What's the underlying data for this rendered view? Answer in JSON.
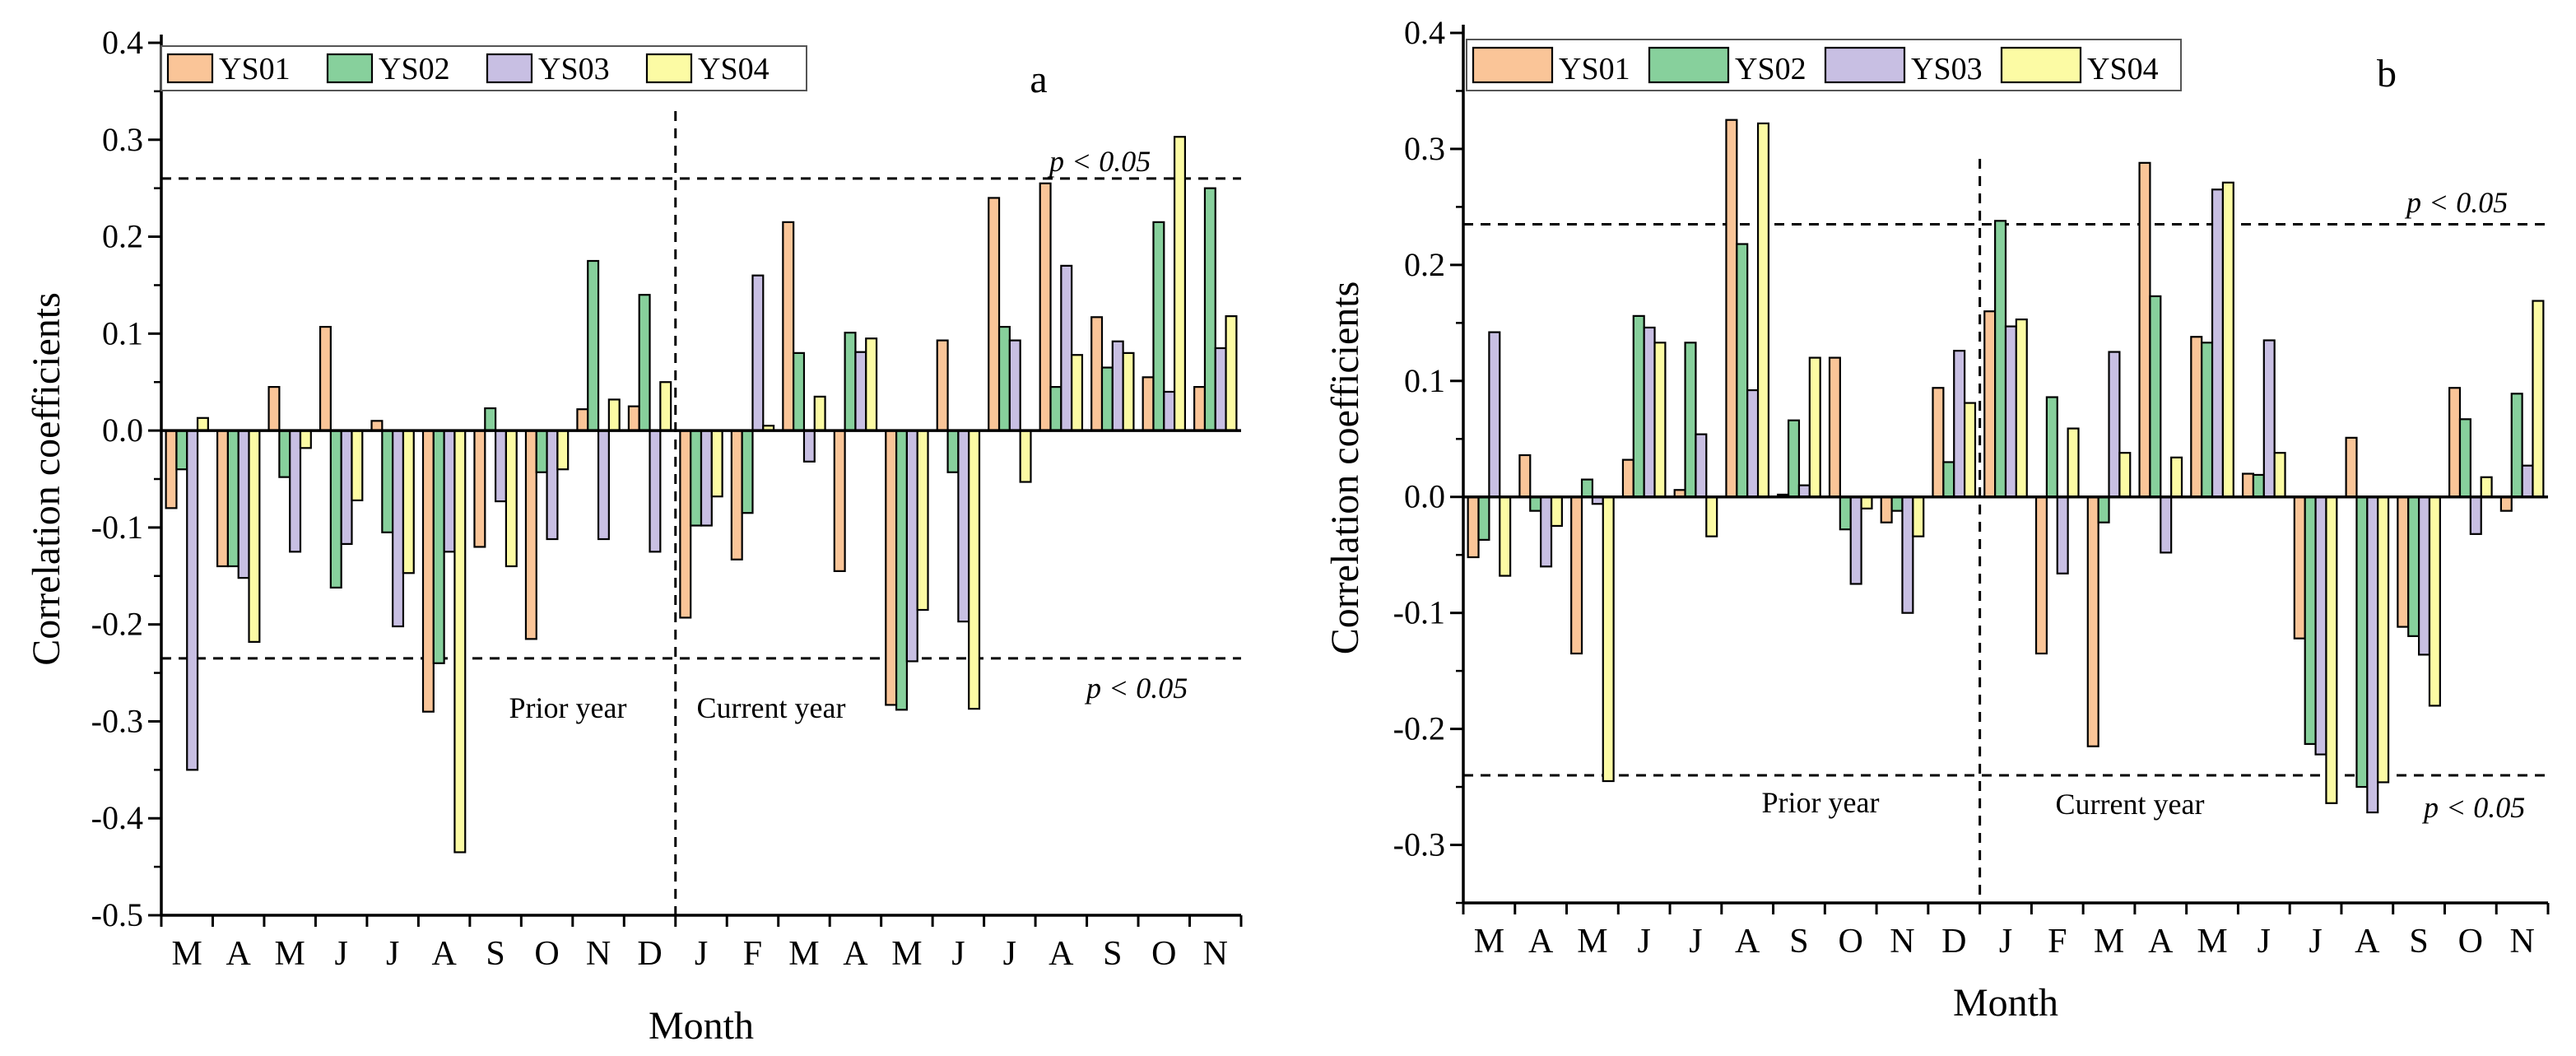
{
  "colors": {
    "YS01": "#FAC598",
    "YS02": "#87D09C",
    "YS03": "#C8BFE3",
    "YS04": "#FCFBA4",
    "axis": "#000000"
  },
  "chart_data": [
    {
      "type": "bar",
      "panel_label": "a",
      "ylabel": "Correlation coefficients",
      "xlabel": "Month",
      "ylim": [
        -0.5,
        0.4
      ],
      "ytick_labels": [
        "-0.5",
        "-0.4",
        "-0.3",
        "-0.2",
        "-0.1",
        "0.0",
        "0.1",
        "0.2",
        "0.3",
        "0.4"
      ],
      "categories": [
        "M",
        "A",
        "M",
        "J",
        "J",
        "A",
        "S",
        "O",
        "N",
        "D",
        "J",
        "F",
        "M",
        "A",
        "M",
        "J",
        "J",
        "A",
        "S",
        "O",
        "N"
      ],
      "divider_after_index": 9,
      "prior_label": "Prior year",
      "current_label": "Current year",
      "thresholds": [
        {
          "value": 0.26,
          "label": "p < 0.05"
        },
        {
          "value": -0.235,
          "label": "p < 0.05"
        }
      ],
      "series": [
        {
          "name": "YS01",
          "values": [
            -0.08,
            -0.14,
            0.045,
            0.107,
            0.01,
            -0.29,
            -0.12,
            -0.215,
            0.022,
            0.025,
            -0.193,
            -0.133,
            0.215,
            -0.145,
            -0.283,
            0.093,
            0.24,
            0.255,
            0.117,
            0.055,
            0.045
          ]
        },
        {
          "name": "YS02",
          "values": [
            -0.04,
            -0.14,
            -0.048,
            -0.162,
            -0.105,
            -0.24,
            0.023,
            -0.043,
            0.175,
            0.14,
            -0.098,
            -0.085,
            0.08,
            0.101,
            -0.288,
            -0.043,
            0.107,
            0.045,
            0.065,
            0.215,
            0.25
          ]
        },
        {
          "name": "YS03",
          "values": [
            -0.35,
            -0.152,
            -0.125,
            -0.117,
            -0.202,
            -0.125,
            -0.073,
            -0.112,
            -0.112,
            -0.125,
            -0.098,
            0.16,
            -0.032,
            0.081,
            -0.238,
            -0.197,
            0.093,
            0.17,
            0.092,
            0.04,
            0.085
          ]
        },
        {
          "name": "YS04",
          "values": [
            0.013,
            -0.218,
            -0.018,
            -0.072,
            -0.147,
            -0.435,
            -0.14,
            -0.04,
            0.032,
            0.05,
            -0.068,
            0.005,
            0.035,
            0.095,
            -0.185,
            -0.287,
            -0.053,
            0.078,
            0.08,
            0.303,
            0.118
          ]
        }
      ]
    },
    {
      "type": "bar",
      "panel_label": "b",
      "ylabel": "Correlation coefficients",
      "xlabel": "Month",
      "ylim": [
        -0.35,
        0.4
      ],
      "ytick_labels": [
        "-0.3",
        "-0.2",
        "-0.1",
        "0.0",
        "0.1",
        "0.2",
        "0.3",
        "0.4"
      ],
      "categories": [
        "M",
        "A",
        "M",
        "J",
        "J",
        "A",
        "S",
        "O",
        "N",
        "D",
        "J",
        "F",
        "M",
        "A",
        "M",
        "J",
        "J",
        "A",
        "S",
        "O",
        "N"
      ],
      "divider_after_index": 9,
      "prior_label": "Prior year",
      "current_label": "Current year",
      "thresholds": [
        {
          "value": 0.235,
          "label": "p < 0.05"
        },
        {
          "value": -0.24,
          "label": "p < 0.05"
        }
      ],
      "series": [
        {
          "name": "YS01",
          "values": [
            -0.052,
            0.036,
            -0.135,
            0.032,
            0.006,
            0.325,
            0.002,
            0.12,
            -0.022,
            0.094,
            0.16,
            -0.135,
            -0.215,
            0.288,
            0.138,
            0.02,
            -0.122,
            0.051,
            -0.112,
            0.094,
            -0.012
          ]
        },
        {
          "name": "YS02",
          "values": [
            -0.037,
            -0.012,
            0.015,
            0.156,
            0.133,
            0.218,
            0.066,
            -0.028,
            -0.012,
            0.03,
            0.238,
            0.086,
            -0.022,
            0.173,
            0.133,
            0.019,
            -0.213,
            -0.25,
            -0.12,
            0.067,
            0.089
          ]
        },
        {
          "name": "YS03",
          "values": [
            0.142,
            -0.06,
            -0.006,
            0.146,
            0.054,
            0.092,
            0.01,
            -0.075,
            -0.1,
            0.126,
            0.147,
            -0.066,
            0.125,
            -0.048,
            0.265,
            0.135,
            -0.222,
            -0.272,
            -0.136,
            -0.032,
            0.027
          ]
        },
        {
          "name": "YS04",
          "values": [
            -0.068,
            -0.025,
            -0.245,
            0.133,
            -0.034,
            0.322,
            0.12,
            -0.01,
            -0.034,
            0.081,
            0.153,
            0.059,
            0.038,
            0.034,
            0.271,
            0.038,
            -0.264,
            -0.246,
            -0.18,
            0.017,
            0.169
          ]
        }
      ]
    }
  ]
}
